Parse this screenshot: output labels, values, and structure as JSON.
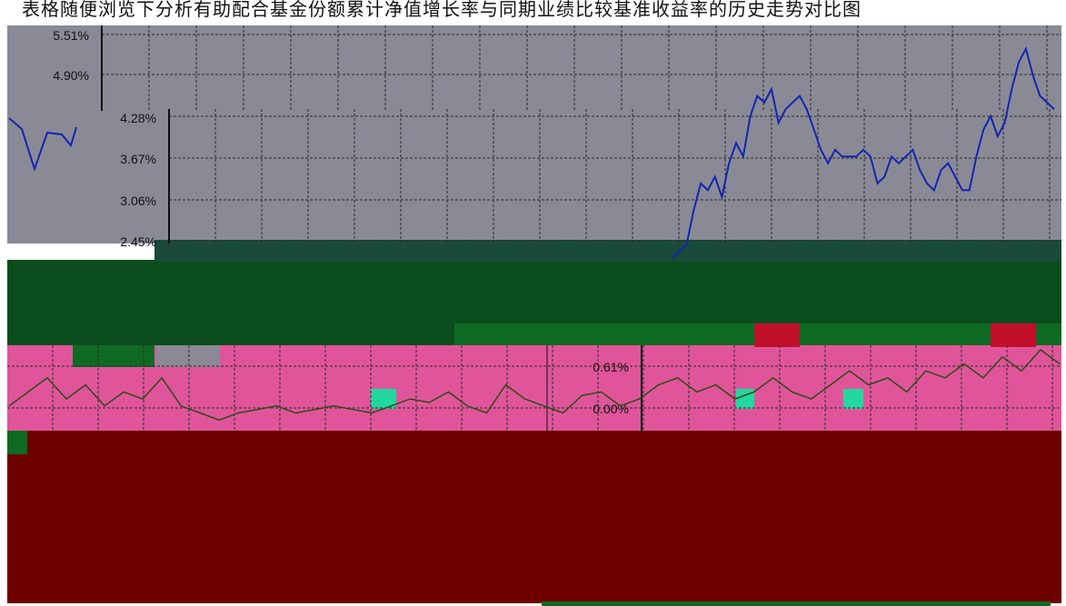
{
  "caption": "表格随便浏览下分析有助配合基金份额累计净值增长率与同期业绩比较基准收益率的历史走势对比图",
  "colors": {
    "gray_panel": "#8a8a96",
    "green_band": "#0b4d1c",
    "pink_band": "#e0559a",
    "maroon_band": "#6f0000",
    "line_blue": "#1326b0",
    "line_olive": "#2d4a14",
    "grid": "#2a2a2a"
  },
  "chart_data": [
    {
      "type": "line",
      "title": "",
      "ylabel": "",
      "xlabel": "",
      "y_ticks": [
        "5.51%",
        "4.90%",
        "4.28%",
        "3.67%",
        "3.06%",
        "2.45%"
      ],
      "ylim": [
        2.45,
        5.51
      ],
      "grid": true,
      "series": [
        {
          "values": [
            2.2,
            2.3,
            2.4,
            2.9,
            3.3,
            3.2,
            3.4,
            3.1,
            3.6,
            3.9,
            3.7,
            4.3,
            4.6,
            4.5,
            4.7,
            4.2,
            4.4,
            4.5,
            4.6,
            4.4,
            4.1,
            3.8,
            3.6,
            3.8,
            3.7,
            3.7,
            3.7,
            3.8,
            3.7,
            3.3,
            3.4,
            3.7,
            3.6,
            3.7,
            3.8,
            3.5,
            3.3,
            3.2,
            3.5,
            3.6,
            3.4,
            3.2,
            3.2,
            3.7,
            4.1,
            4.3,
            4.0,
            4.2,
            4.7,
            5.1,
            5.3,
            4.9,
            4.6,
            4.5,
            4.4
          ]
        }
      ]
    },
    {
      "type": "line",
      "title": "",
      "ylabel": "",
      "xlabel": "",
      "y_ticks": [
        "0.61%",
        "0.00%"
      ],
      "ylim": [
        -0.2,
        0.9
      ],
      "grid": true,
      "series": [
        {
          "values": [
            0.1,
            0.3,
            0.5,
            0.2,
            0.4,
            0.1,
            0.3,
            0.2,
            0.5,
            0.1,
            0.0,
            -0.1,
            0.0,
            0.05,
            0.1,
            0.0,
            0.05,
            0.1,
            0.05,
            0.0,
            0.1,
            0.2,
            0.15,
            0.3,
            0.1,
            0.0,
            0.4,
            0.2,
            0.1,
            0.0,
            0.25,
            0.3,
            0.1,
            0.2,
            0.4,
            0.5,
            0.3,
            0.4,
            0.2,
            0.3,
            0.5,
            0.3,
            0.2,
            0.4,
            0.6,
            0.4,
            0.5,
            0.3,
            0.6,
            0.5,
            0.7,
            0.5,
            0.8,
            0.6,
            0.9,
            0.7
          ]
        }
      ]
    }
  ]
}
